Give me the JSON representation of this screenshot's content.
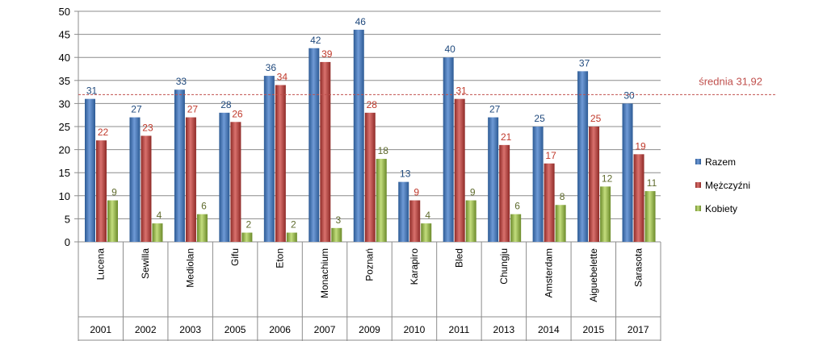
{
  "chart_data": {
    "type": "bar",
    "categories": [
      "Lucena",
      "Sewilla",
      "Mediolan",
      "Gifu",
      "Eton",
      "Monachium",
      "Poznań",
      "Karapiro",
      "Bled",
      "Chungju",
      "Amsterdam",
      "Aiguebelette",
      "Sarasota"
    ],
    "years": [
      "2001",
      "2002",
      "2003",
      "2005",
      "2006",
      "2007",
      "2009",
      "2010",
      "2011",
      "2013",
      "2014",
      "2015",
      "2017"
    ],
    "series": [
      {
        "name": "Razem",
        "color": "#4a7ebb",
        "label_color": "#1f497d",
        "values": [
          31,
          27,
          33,
          28,
          36,
          42,
          46,
          13,
          40,
          27,
          25,
          37,
          30
        ]
      },
      {
        "name": "Mężczyźni",
        "color": "#c0504d",
        "label_color": "#c0392b",
        "values": [
          22,
          23,
          27,
          26,
          34,
          39,
          28,
          9,
          31,
          21,
          17,
          25,
          19
        ]
      },
      {
        "name": "Kobiety",
        "color": "#9bbb59",
        "label_color": "#5f6b2d",
        "values": [
          9,
          4,
          6,
          2,
          2,
          3,
          18,
          4,
          9,
          6,
          8,
          12,
          11
        ]
      }
    ],
    "ylim": [
      0,
      50
    ],
    "yticks": [
      "0",
      "5",
      "10",
      "15",
      "20",
      "25",
      "30",
      "35",
      "40",
      "45",
      "50"
    ],
    "average": {
      "value": 31.92,
      "label": "średnia 31,92",
      "color": "#c0504d"
    },
    "grid": true,
    "legend_position": "right"
  }
}
